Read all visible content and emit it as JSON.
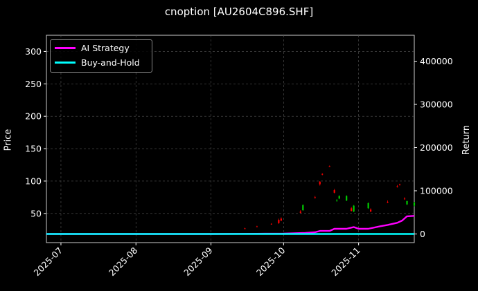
{
  "chart_data": {
    "type": "candlestick+line",
    "title": "cnoption [AU2604C896.SHF]",
    "ylabel_left": "Price",
    "ylabel_right": "Return",
    "x_ticks": [
      "2025-07",
      "2025-08",
      "2025-09",
      "2025-10",
      "2025-11"
    ],
    "x_range": [
      "2025-06-25",
      "2025-11-24"
    ],
    "y_left_ticks": [
      50,
      100,
      150,
      200,
      250,
      300
    ],
    "y_left_range": [
      5,
      325
    ],
    "y_right_ticks": [
      0,
      100000,
      200000,
      300000,
      400000
    ],
    "y_right_range": [
      -20000,
      460000
    ],
    "grid": true,
    "legend": {
      "position": "top-left",
      "entries": [
        {
          "name": "AI Strategy",
          "color": "#ff00ff"
        },
        {
          "name": "Buy-and-Hold",
          "color": "#00ffff"
        }
      ]
    },
    "colors": {
      "up": "#00cc00",
      "down": "#ff0000",
      "strategy": "#ff00ff",
      "buyhold": "#00ffff"
    },
    "candles": [
      {
        "date": "2025-09-15",
        "open": 27,
        "high": 28,
        "low": 26,
        "close": 26.5
      },
      {
        "date": "2025-09-20",
        "open": 30,
        "high": 31,
        "low": 29,
        "close": 29.5
      },
      {
        "date": "2025-09-26",
        "open": 34,
        "high": 35,
        "low": 33,
        "close": 33.5
      },
      {
        "date": "2025-09-29",
        "open": 40,
        "high": 42,
        "low": 34,
        "close": 35
      },
      {
        "date": "2025-09-30",
        "open": 42,
        "high": 44,
        "low": 38,
        "close": 39
      },
      {
        "date": "2025-10-08",
        "open": 53,
        "high": 55,
        "low": 50,
        "close": 51
      },
      {
        "date": "2025-10-09",
        "open": 55,
        "high": 64,
        "low": 54,
        "close": 63
      },
      {
        "date": "2025-10-14",
        "open": 75,
        "high": 77,
        "low": 73,
        "close": 74
      },
      {
        "date": "2025-10-16",
        "open": 99,
        "high": 100,
        "low": 93,
        "close": 95
      },
      {
        "date": "2025-10-17",
        "open": 111,
        "high": 112,
        "low": 109,
        "close": 110
      },
      {
        "date": "2025-10-20",
        "open": 123,
        "high": 124,
        "low": 122,
        "close": 122.5
      },
      {
        "date": "2025-10-22",
        "open": 86,
        "high": 88,
        "low": 81,
        "close": 82
      },
      {
        "date": "2025-10-23",
        "open": 70,
        "high": 72,
        "low": 68,
        "close": 71
      },
      {
        "date": "2025-10-24",
        "open": 73,
        "high": 78,
        "low": 72,
        "close": 77
      },
      {
        "date": "2025-10-27",
        "open": 70,
        "high": 78,
        "low": 69,
        "close": 77
      },
      {
        "date": "2025-10-29",
        "open": 58,
        "high": 60,
        "low": 53,
        "close": 54
      },
      {
        "date": "2025-10-30",
        "open": 53,
        "high": 63,
        "low": 52,
        "close": 62
      },
      {
        "date": "2025-11-05",
        "open": 58,
        "high": 67,
        "low": 57,
        "close": 66
      },
      {
        "date": "2025-11-06",
        "open": 56,
        "high": 58,
        "low": 52,
        "close": 53
      },
      {
        "date": "2025-11-13",
        "open": 68,
        "high": 70,
        "low": 66,
        "close": 67
      },
      {
        "date": "2025-11-17",
        "open": 92,
        "high": 94,
        "low": 90,
        "close": 91
      },
      {
        "date": "2025-11-18",
        "open": 95,
        "high": 96,
        "low": 93,
        "close": 94
      },
      {
        "date": "2025-11-20",
        "open": 73,
        "high": 75,
        "low": 71,
        "close": 72
      },
      {
        "date": "2025-11-21",
        "open": 64,
        "high": 70,
        "low": 63,
        "close": 69
      },
      {
        "date": "2025-11-24",
        "open": 62,
        "high": 68,
        "low": 61,
        "close": 67
      }
    ],
    "series": [
      {
        "name": "AI Strategy",
        "color": "#ff00ff",
        "axis": "right",
        "x": [
          "2025-06-25",
          "2025-07-15",
          "2025-08-01",
          "2025-09-01",
          "2025-09-20",
          "2025-10-01",
          "2025-10-10",
          "2025-10-14",
          "2025-10-16",
          "2025-10-20",
          "2025-10-22",
          "2025-10-27",
          "2025-10-30",
          "2025-11-01",
          "2025-11-05",
          "2025-11-10",
          "2025-11-13",
          "2025-11-17",
          "2025-11-19",
          "2025-11-21",
          "2025-11-24"
        ],
        "values": [
          0,
          0,
          0,
          0,
          500,
          1000,
          2500,
          4000,
          7000,
          7000,
          12000,
          12000,
          16000,
          12000,
          12000,
          18000,
          21000,
          26000,
          31000,
          41000,
          42000
        ]
      },
      {
        "name": "Buy-and-Hold",
        "color": "#00ffff",
        "axis": "right",
        "x": [
          "2025-06-25",
          "2025-11-24"
        ],
        "values": [
          0,
          0
        ]
      }
    ]
  }
}
